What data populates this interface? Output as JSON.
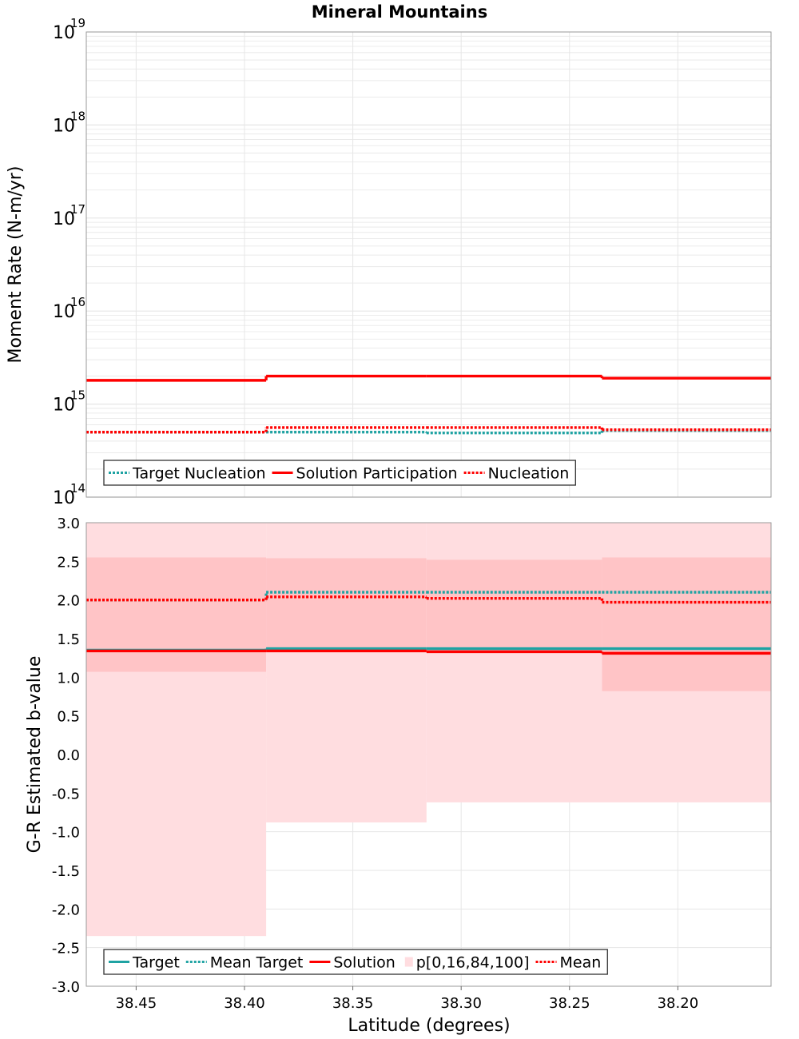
{
  "title": "Mineral Mountains",
  "colors": {
    "target": "#1fa3a3",
    "solution": "#ff0000",
    "band_outer": "#ffdde0",
    "band_inner": "#ffc4c6",
    "grid": "#e6e6e6",
    "frame": "#999999"
  },
  "chart_data": [
    {
      "type": "line",
      "name": "moment-rate",
      "ylabel": "Moment Rate (N-m/yr)",
      "yscale": "log",
      "ylim": [
        100000000000000.0,
        1e+19
      ],
      "xlim": [
        38.473,
        38.157
      ],
      "x_reversed": true,
      "ytick_labels": [
        {
          "base": "10",
          "exp": "14",
          "value": 100000000000000.0
        },
        {
          "base": "10",
          "exp": "15",
          "value": 1000000000000000.0
        },
        {
          "base": "10",
          "exp": "16",
          "value": 1e+16
        },
        {
          "base": "10",
          "exp": "17",
          "value": 1e+17
        },
        {
          "base": "10",
          "exp": "18",
          "value": 1e+18
        },
        {
          "base": "10",
          "exp": "19",
          "value": 1e+19
        }
      ],
      "grid": true,
      "legend_position": "bottom-left",
      "bin_edges": [
        38.473,
        38.39,
        38.316,
        38.235,
        38.157
      ],
      "series": [
        {
          "name": "Target Nucleation",
          "style": "dotted",
          "color": "#1fa3a3",
          "values": [
            500000000000000.0,
            500000000000000.0,
            490000000000000.0,
            520000000000000.0
          ]
        },
        {
          "name": "Solution Participation",
          "style": "solid",
          "color": "#ff0000",
          "values": [
            1800000000000000.0,
            2000000000000000.0,
            2000000000000000.0,
            1900000000000000.0
          ]
        },
        {
          "name": "Nucleation",
          "style": "dotted",
          "color": "#ff0000",
          "values": [
            500000000000000.0,
            560000000000000.0,
            560000000000000.0,
            530000000000000.0
          ]
        }
      ]
    },
    {
      "type": "line",
      "name": "b-value",
      "xlabel": "Latitude (degrees)",
      "ylabel": "G-R Estimated b-value",
      "ylim": [
        -3.0,
        3.0
      ],
      "xlim": [
        38.473,
        38.157
      ],
      "x_reversed": true,
      "xticks": [
        38.45,
        38.4,
        38.35,
        38.3,
        38.25,
        38.2
      ],
      "xtick_labels": [
        "38.45",
        "38.40",
        "38.35",
        "38.30",
        "38.25",
        "38.20"
      ],
      "yticks": [
        -3.0,
        -2.5,
        -2.0,
        -1.5,
        -1.0,
        -0.5,
        0.0,
        0.5,
        1.0,
        1.5,
        2.0,
        2.5,
        3.0
      ],
      "ytick_labels": [
        "-3.0",
        "-2.5",
        "-2.0",
        "-1.5",
        "-1.0",
        "-0.5",
        "0.0",
        "0.5",
        "1.0",
        "1.5",
        "2.0",
        "2.5",
        "3.0"
      ],
      "grid": true,
      "legend_position": "bottom-left",
      "bin_edges": [
        38.473,
        38.39,
        38.316,
        38.235,
        38.157
      ],
      "band": {
        "name": "p[0,16,84,100]",
        "p0": [
          -2.35,
          -0.88,
          -0.62,
          -0.62
        ],
        "p16": [
          1.07,
          1.33,
          1.33,
          0.82
        ],
        "p84": [
          2.55,
          2.54,
          2.52,
          2.55
        ],
        "p100": [
          3.0,
          3.0,
          3.0,
          3.0
        ]
      },
      "series": [
        {
          "name": "Target",
          "style": "solid",
          "color": "#1fa3a3",
          "values": [
            1.35,
            1.37,
            1.37,
            1.37
          ]
        },
        {
          "name": "Mean Target",
          "style": "dotted",
          "color": "#1fa3a3",
          "values": [
            2.0,
            2.1,
            2.1,
            2.1
          ]
        },
        {
          "name": "Solution",
          "style": "solid",
          "color": "#ff0000",
          "values": [
            1.34,
            1.34,
            1.33,
            1.31
          ]
        },
        {
          "name": "Mean",
          "style": "dotted",
          "color": "#ff0000",
          "values": [
            2.0,
            2.04,
            2.02,
            1.97
          ]
        }
      ]
    }
  ]
}
